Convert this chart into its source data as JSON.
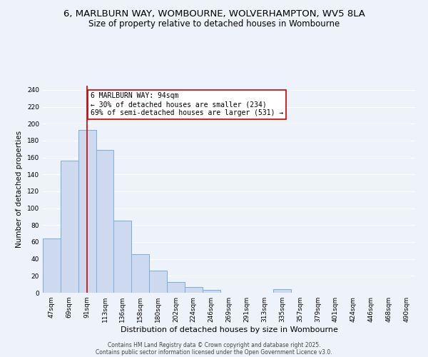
{
  "title": "6, MARLBURN WAY, WOMBOURNE, WOLVERHAMPTON, WV5 8LA",
  "subtitle": "Size of property relative to detached houses in Wombourne",
  "xlabel": "Distribution of detached houses by size in Wombourne",
  "ylabel": "Number of detached properties",
  "bar_labels": [
    "47sqm",
    "69sqm",
    "91sqm",
    "113sqm",
    "136sqm",
    "158sqm",
    "180sqm",
    "202sqm",
    "224sqm",
    "246sqm",
    "269sqm",
    "291sqm",
    "313sqm",
    "335sqm",
    "357sqm",
    "379sqm",
    "401sqm",
    "424sqm",
    "446sqm",
    "468sqm",
    "490sqm"
  ],
  "bar_values": [
    64,
    156,
    193,
    169,
    85,
    46,
    26,
    13,
    7,
    3,
    0,
    0,
    0,
    4,
    0,
    0,
    0,
    0,
    0,
    0,
    0
  ],
  "bar_color": "#cdd9ef",
  "bar_edge_color": "#7dacd4",
  "vline_x": 2,
  "vline_color": "#cc0000",
  "annotation_line1": "6 MARLBURN WAY: 94sqm",
  "annotation_line2": "← 30% of detached houses are smaller (234)",
  "annotation_line3": "69% of semi-detached houses are larger (531) →",
  "annotation_box_color": "#ffffff",
  "annotation_box_edge": "#cc0000",
  "ylim": [
    0,
    245
  ],
  "yticks": [
    0,
    20,
    40,
    60,
    80,
    100,
    120,
    140,
    160,
    180,
    200,
    220,
    240
  ],
  "bg_color": "#eef2fb",
  "grid_color": "#ffffff",
  "title_fontsize": 9.5,
  "subtitle_fontsize": 8.5,
  "axis_label_fontsize": 8,
  "tick_fontsize": 6.5,
  "ylabel_fontsize": 7.5,
  "footer_line1": "Contains HM Land Registry data © Crown copyright and database right 2025.",
  "footer_line2": "Contains public sector information licensed under the Open Government Licence v3.0."
}
